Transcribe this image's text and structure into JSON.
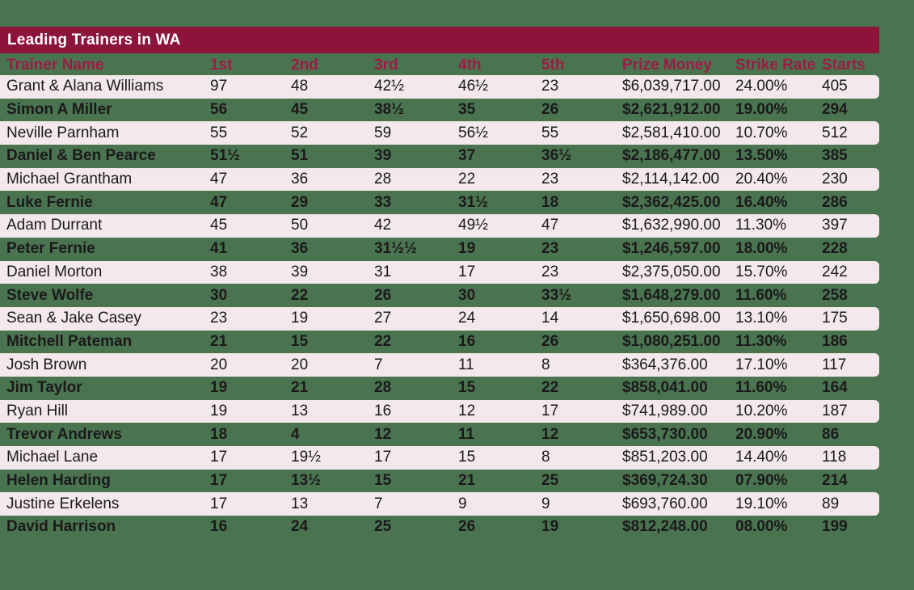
{
  "colors": {
    "background_green": "#4A7350",
    "title_bar_maroon": "#8C1339",
    "header_text_maroon": "#9C1C45",
    "row_pink": "#F3E8EC",
    "text_dark": "#1A1A1A",
    "title_text_white": "#FFFFFF"
  },
  "header": {
    "title": "Leading Trainers in WA"
  },
  "chart_data": {
    "type": "table",
    "title": "Leading Trainers in WA",
    "columns": [
      "Trainer Name",
      "1st",
      "2nd",
      "3rd",
      "4th",
      "5th",
      "Prize Money",
      "Strike Rate",
      "Starts"
    ],
    "column_keys": [
      "trainer-name",
      "1st",
      "2nd",
      "3rd",
      "4th",
      "5th",
      "prize-money",
      "strike-rate",
      "starts"
    ],
    "rows": [
      [
        "Grant & Alana Williams",
        "97",
        "48",
        "42½",
        "46½",
        "23",
        "$6,039,717.00",
        "24.00%",
        "405"
      ],
      [
        "Simon A Miller",
        "56",
        "45",
        "38½",
        "35",
        "26",
        "$2,621,912.00",
        "19.00%",
        "294"
      ],
      [
        "Neville Parnham",
        "55",
        "52",
        "59",
        "56½",
        "55",
        "$2,581,410.00",
        "10.70%",
        "512"
      ],
      [
        "Daniel & Ben Pearce",
        "51½",
        "51",
        "39",
        "37",
        "36½",
        "$2,186,477.00",
        "13.50%",
        "385"
      ],
      [
        "Michael Grantham",
        "47",
        "36",
        "28",
        "22",
        "23",
        "$2,114,142.00",
        "20.40%",
        "230"
      ],
      [
        "Luke Fernie",
        "47",
        "29",
        "33",
        "31½",
        "18",
        "$2,362,425.00",
        "16.40%",
        "286"
      ],
      [
        "Adam Durrant",
        "45",
        "50",
        "42",
        "49½",
        "47",
        "$1,632,990.00",
        "11.30%",
        "397"
      ],
      [
        "Peter Fernie",
        "41",
        "36",
        "31½½",
        "19",
        "23",
        "$1,246,597.00",
        "18.00%",
        "228"
      ],
      [
        "Daniel Morton",
        "38",
        "39",
        "31",
        "17",
        "23",
        "$2,375,050.00",
        "15.70%",
        "242"
      ],
      [
        "Steve Wolfe",
        "30",
        "22",
        "26",
        "30",
        "33½",
        "$1,648,279.00",
        "11.60%",
        "258"
      ],
      [
        "Sean & Jake Casey",
        "23",
        "19",
        "27",
        "24",
        "14",
        "$1,650,698.00",
        "13.10%",
        "175"
      ],
      [
        "Mitchell Pateman",
        "21",
        "15",
        "22",
        "16",
        "26",
        "$1,080,251.00",
        "11.30%",
        "186"
      ],
      [
        "Josh Brown",
        "20",
        "20",
        "7",
        "11",
        "8",
        "$364,376.00",
        "17.10%",
        "117"
      ],
      [
        "Jim Taylor",
        "19",
        "21",
        "28",
        "15",
        "22",
        "$858,041.00",
        "11.60%",
        "164"
      ],
      [
        "Ryan Hill",
        "19",
        "13",
        "16",
        "12",
        "17",
        "$741,989.00",
        "10.20%",
        "187"
      ],
      [
        "Trevor Andrews",
        "18",
        "4",
        "12",
        "11",
        "12",
        "$653,730.00",
        "20.90%",
        "86"
      ],
      [
        "Michael Lane",
        "17",
        "19½",
        "17",
        "15",
        "8",
        "$851,203.00",
        "14.40%",
        "118"
      ],
      [
        "Helen Harding",
        "17",
        "13½",
        "15",
        "21",
        "25",
        "$369,724.30",
        "07.90%",
        "214"
      ],
      [
        "Justine Erkelens",
        "17",
        "13",
        "7",
        "9",
        "9",
        "$693,760.00",
        "19.10%",
        "89"
      ],
      [
        "David Harrison",
        "16",
        "24",
        "25",
        "26",
        "19",
        "$812,248.00",
        "08.00%",
        "199"
      ]
    ]
  }
}
